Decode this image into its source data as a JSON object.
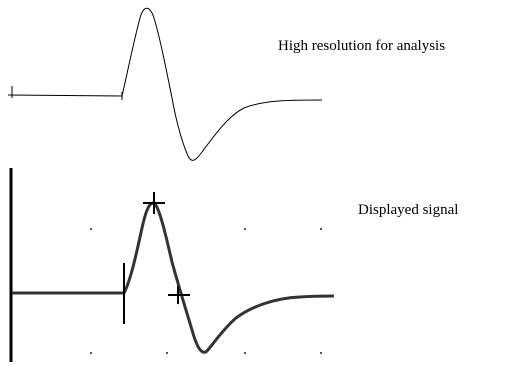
{
  "captions": {
    "high_resolution": "High resolution for analysis",
    "displayed": "Displayed signal"
  },
  "colors": {
    "background": "#ffffff",
    "trace_top": "#000000",
    "trace_bottom": "#333333",
    "marker": "#000000",
    "grid_dot": "#555555"
  }
}
